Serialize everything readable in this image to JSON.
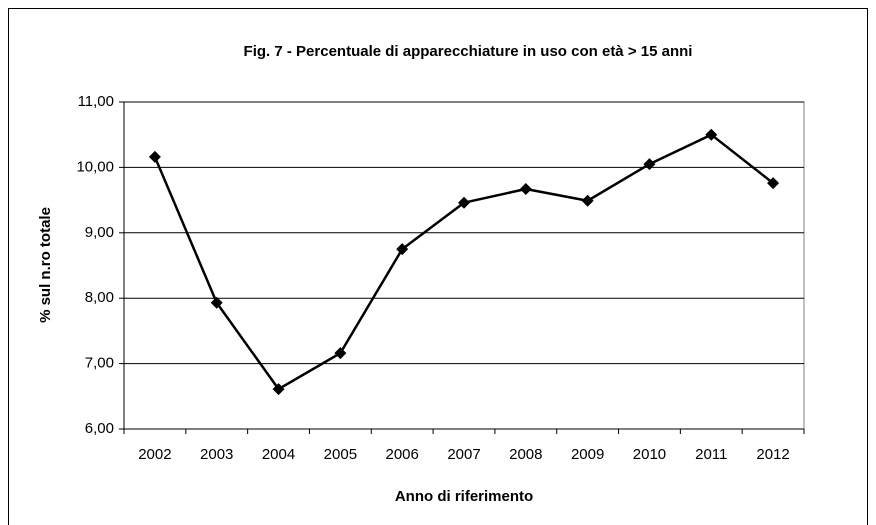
{
  "chart_data": {
    "type": "line",
    "title": "Fig. 7 - Percentuale di apparecchiature in uso con età > 15 anni",
    "x_label": "Anno di riferimento",
    "y_label": "% sul n.ro totale",
    "categories": [
      "2002",
      "2003",
      "2004",
      "2005",
      "2006",
      "2007",
      "2008",
      "2009",
      "2010",
      "2011",
      "2012"
    ],
    "values": [
      10.16,
      7.93,
      6.61,
      7.16,
      8.75,
      9.46,
      9.67,
      9.49,
      10.05,
      10.5,
      9.76
    ],
    "color": "#000000",
    "ylim": [
      6,
      11
    ],
    "yticks": [
      {
        "value": 6,
        "label": "6,00"
      },
      {
        "value": 7,
        "label": "7,00"
      },
      {
        "value": 8,
        "label": "8,00"
      },
      {
        "value": 9,
        "label": "9,00"
      },
      {
        "value": 10,
        "label": "10,00"
      },
      {
        "value": 11,
        "label": "11,00"
      }
    ],
    "grid": true
  }
}
